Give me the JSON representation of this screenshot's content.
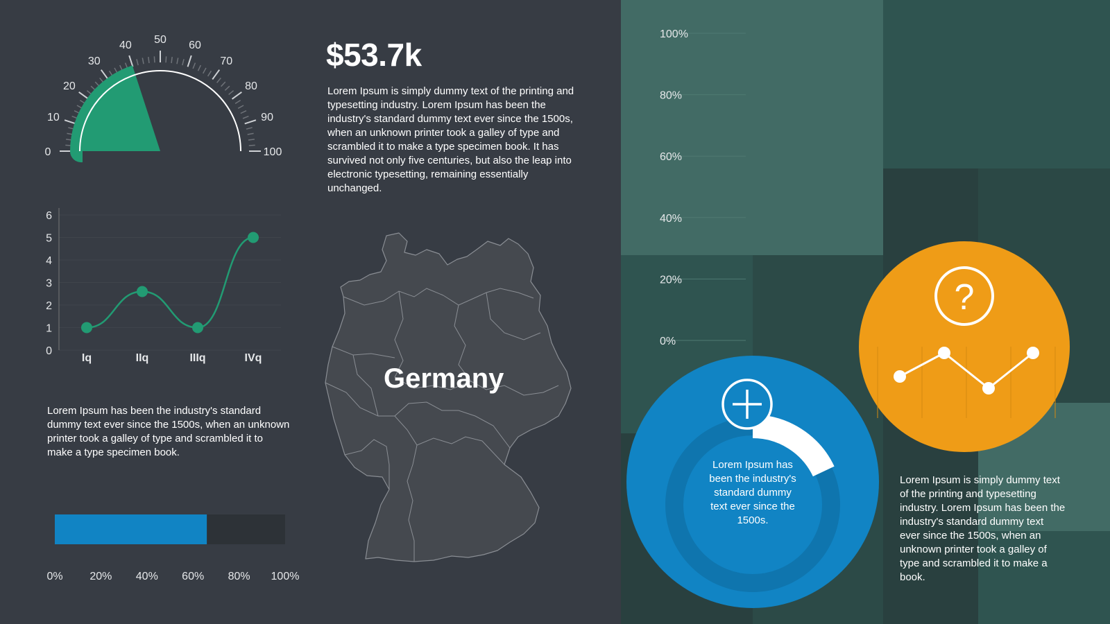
{
  "colors": {
    "background": "#373c44",
    "green": "#229b73",
    "blue": "#1184c4",
    "orange": "#ef9c17",
    "treemap_light": "#426b65",
    "treemap_dark": "#29403f"
  },
  "gauge": {
    "ticks": [
      "0",
      "10",
      "20",
      "30",
      "40",
      "50",
      "60",
      "70",
      "80",
      "90",
      "100"
    ],
    "value": 40,
    "min": 0,
    "max": 100
  },
  "headline": {
    "value": "$53.7k",
    "text": "Lorem Ipsum is simply dummy text of the printing and typesetting industry. Lorem Ipsum has been the industry's standard dummy text ever since the 1500s, when an unknown printer took a galley of type and scrambled it to make a type specimen book. It has survived not only five centuries, but also the leap into electronic typesetting, remaining essentially unchanged."
  },
  "chart_data": [
    {
      "type": "line",
      "categories": [
        "Iq",
        "IIq",
        "IIIq",
        "IVq"
      ],
      "values": [
        1,
        2.6,
        1,
        5
      ],
      "ylim": [
        0,
        6
      ],
      "yticks": [
        "0",
        "1",
        "2",
        "3",
        "4",
        "5",
        "6"
      ],
      "grid": true
    },
    {
      "type": "bar",
      "orientation": "horizontal",
      "values": [
        66
      ],
      "xlim": [
        0,
        100
      ],
      "xticks": [
        "0%",
        "20%",
        "40%",
        "60%",
        "80%",
        "100%"
      ]
    }
  ],
  "left_text": "Lorem Ipsum has been the industry's standard dummy text ever since the 1500s, when an unknown printer took a galley of type and scrambled it to make a type specimen book.",
  "map": {
    "label": "Germany"
  },
  "right_panel": {
    "yticks": [
      "100%",
      "80%",
      "60%",
      "40%",
      "20%",
      "0%"
    ],
    "blue_circle": {
      "icon": "plus-icon",
      "text": "Lorem Ipsum has been the industry's standard dummy text ever since the 1500s.",
      "progress": 0.18
    },
    "orange_circle": {
      "icon": "question-icon",
      "values": [
        1,
        3,
        0,
        3
      ]
    },
    "text": "Lorem Ipsum is simply dummy text of the printing and typesetting industry. Lorem Ipsum has been the industry's standard dummy text ever since the 1500s, when an unknown printer took a galley of type and scrambled it to make a book."
  }
}
